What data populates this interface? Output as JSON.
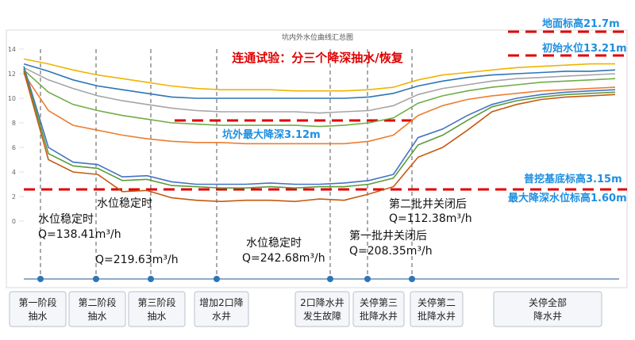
{
  "chart_data": {
    "type": "line",
    "title": "坑内外水位曲线汇总图",
    "categories": [
      null,
      null,
      null,
      null,
      null,
      null,
      null,
      null,
      null,
      null,
      null,
      null,
      null,
      null,
      null,
      null,
      null,
      null,
      null,
      null,
      null,
      null,
      null,
      null,
      null
    ],
    "ylim": [
      0,
      14
    ],
    "yticks": [
      0,
      2,
      4,
      6,
      8,
      10,
      12,
      14
    ],
    "grid": false,
    "series": [
      {
        "color": "#f0b400",
        "values": [
          13.2,
          12.8,
          12.3,
          11.9,
          11.6,
          11.3,
          11.0,
          10.8,
          10.7,
          10.7,
          10.7,
          10.6,
          10.6,
          10.6,
          10.7,
          10.9,
          11.5,
          11.9,
          12.1,
          12.3,
          12.5,
          12.6,
          12.7,
          12.8,
          12.8
        ]
      },
      {
        "color": "#2e75b6",
        "values": [
          12.8,
          12.2,
          11.5,
          11.0,
          10.7,
          10.4,
          10.1,
          10.0,
          10.0,
          10.0,
          10.0,
          10.0,
          10.0,
          10.0,
          10.1,
          10.4,
          11.0,
          11.4,
          11.7,
          11.9,
          12.0,
          12.1,
          12.2,
          12.2,
          12.3
        ]
      },
      {
        "color": "#a5a5a5",
        "values": [
          12.5,
          11.5,
          10.8,
          10.2,
          9.8,
          9.5,
          9.2,
          9.0,
          8.9,
          8.9,
          8.9,
          8.9,
          8.8,
          8.9,
          9.0,
          9.4,
          10.3,
          10.8,
          11.1,
          11.4,
          11.6,
          11.7,
          11.8,
          11.9,
          12.0
        ]
      },
      {
        "color": "#70ad47",
        "values": [
          12.3,
          10.5,
          9.5,
          9.0,
          8.6,
          8.3,
          8.0,
          7.9,
          7.8,
          7.8,
          7.8,
          7.8,
          7.7,
          7.8,
          8.0,
          8.4,
          9.6,
          10.2,
          10.6,
          10.9,
          11.1,
          11.3,
          11.4,
          11.5,
          11.6
        ]
      },
      {
        "color": "#ed7d31",
        "values": [
          12.0,
          9.0,
          7.8,
          7.4,
          7.0,
          6.7,
          6.5,
          6.4,
          6.4,
          6.3,
          6.3,
          6.3,
          6.3,
          6.3,
          6.5,
          7.0,
          8.6,
          9.4,
          9.9,
          10.2,
          10.4,
          10.6,
          10.7,
          10.8,
          10.9
        ]
      },
      {
        "color": "#4472c4",
        "values": [
          12.6,
          6.0,
          4.8,
          4.6,
          3.6,
          3.7,
          3.2,
          3.0,
          3.0,
          3.0,
          3.1,
          3.0,
          3.0,
          3.1,
          3.3,
          3.8,
          6.8,
          7.5,
          8.6,
          9.5,
          10.0,
          10.3,
          10.5,
          10.6,
          10.7
        ]
      },
      {
        "color": "#5b9b3a",
        "values": [
          12.4,
          5.5,
          4.5,
          4.3,
          3.3,
          3.4,
          2.9,
          2.8,
          2.7,
          2.7,
          2.8,
          2.7,
          2.8,
          2.8,
          3.0,
          3.5,
          6.2,
          7.0,
          8.2,
          9.3,
          9.8,
          10.1,
          10.3,
          10.4,
          10.5
        ]
      },
      {
        "color": "#c55a11",
        "values": [
          12.2,
          5.0,
          4.0,
          3.8,
          2.4,
          2.5,
          1.9,
          1.7,
          1.6,
          1.7,
          1.7,
          1.6,
          1.8,
          1.7,
          2.2,
          2.8,
          5.2,
          6.0,
          7.4,
          8.9,
          9.5,
          9.9,
          10.1,
          10.2,
          10.3
        ]
      }
    ],
    "annotations": [
      {
        "text": "连通试验：分三个降深抽水/恢复",
        "color": "#e00000"
      },
      {
        "text": "地面标高21.7m",
        "color": "#1e8fe0"
      },
      {
        "text": "初始水位13.21m",
        "color": "#1e8fe0"
      },
      {
        "text": "坑外最大降深3.12m",
        "color": "#1e8fe0"
      },
      {
        "text": "普挖基底标高3.15m",
        "color": "#1e8fe0"
      },
      {
        "text": "最大降深水位标高1.60m",
        "color": "#1e8fe0"
      },
      {
        "text": "水位稳定时",
        "color": "#111111"
      },
      {
        "text": "Q=138.41m³/h",
        "color": "#111111"
      },
      {
        "text": "水位稳定时",
        "color": "#111111"
      },
      {
        "text": "Q=219.63m³/h",
        "color": "#111111"
      },
      {
        "text": "水位稳定时",
        "color": "#111111"
      },
      {
        "text": "Q=242.68m³/h",
        "color": "#111111"
      },
      {
        "text": "第一批井关闭后",
        "color": "#111111"
      },
      {
        "text": "Q=208.35m³/h",
        "color": "#111111"
      },
      {
        "text": "第二批井关闭后",
        "color": "#111111"
      },
      {
        "text": "Q=112.38m³/h",
        "color": "#111111"
      }
    ]
  },
  "stages": [
    {
      "lines": [
        "第一阶段",
        "抽水"
      ]
    },
    {
      "lines": [
        "第二阶段",
        "抽水"
      ]
    },
    {
      "lines": [
        "第三阶段",
        "抽水"
      ]
    },
    {
      "lines": [
        "增加2口降",
        "水井"
      ]
    },
    {
      "lines": [
        "2口降水井",
        "发生故障"
      ]
    },
    {
      "lines": [
        "关停第三",
        "批降水井"
      ]
    },
    {
      "lines": [
        "关停第二",
        "批降水井"
      ]
    },
    {
      "lines": [
        "关停全部",
        "降水井"
      ]
    }
  ]
}
